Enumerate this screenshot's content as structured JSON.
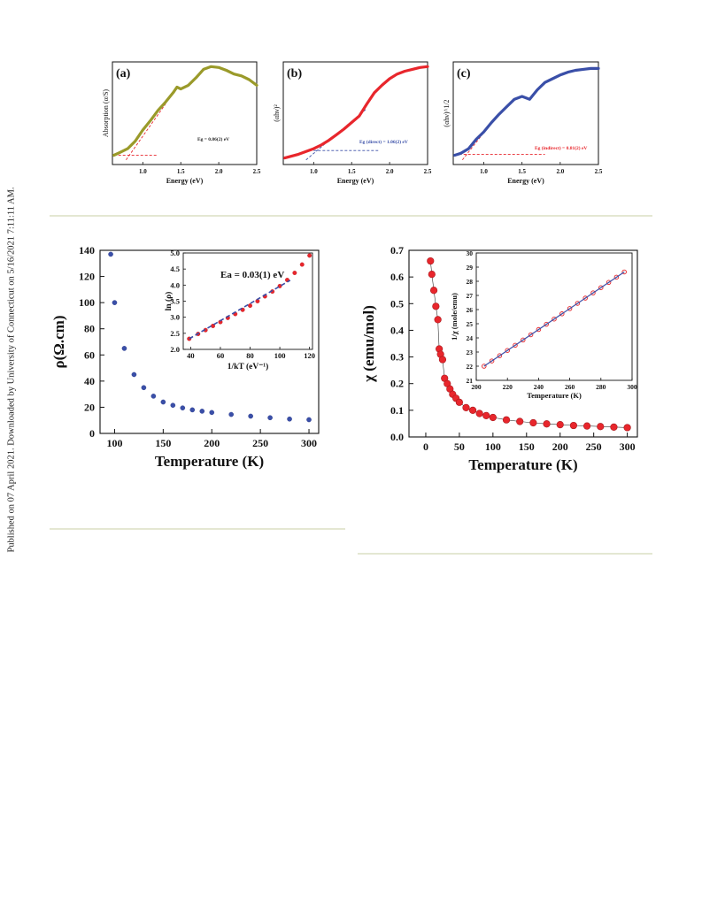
{
  "watermark": "Published on 07 April 2021. Downloaded by University of Connecticut on 5/16/2021 7:11:11 AM.",
  "colors": {
    "olive": "#9a9a2a",
    "red": "#e8262c",
    "blue": "#3a4fa8",
    "divider": "#c8cfa6",
    "dashed_red": "#e8262c",
    "dashed_blue": "#3a4fa8"
  },
  "chart_data": [
    {
      "id": "a",
      "type": "line",
      "panel_label": "(a)",
      "xlabel": "Energy (eV)",
      "ylabel": "Absorption (α/S)",
      "xlim": [
        0.6,
        2.5
      ],
      "xticks": [
        "1.0",
        "1.5",
        "2.0",
        "2.5"
      ],
      "annotation": "Eg = 0.86(2) eV",
      "series": [
        {
          "x": [
            0.62,
            0.7,
            0.8,
            0.9,
            1.0,
            1.1,
            1.2,
            1.3,
            1.4,
            1.45,
            1.5,
            1.6,
            1.7,
            1.8,
            1.9,
            2.0,
            2.1,
            2.2,
            2.3,
            2.4,
            2.5
          ],
          "y": [
            0.05,
            0.08,
            0.12,
            0.2,
            0.32,
            0.42,
            0.53,
            0.62,
            0.72,
            0.78,
            0.76,
            0.8,
            0.88,
            0.97,
            1.0,
            0.99,
            0.96,
            0.92,
            0.9,
            0.86,
            0.8
          ]
        }
      ],
      "tangent": [
        [
          0.78,
          0.0
        ],
        [
          1.3,
          0.6
        ]
      ],
      "baseline": [
        [
          0.62,
          0.05
        ],
        [
          1.2,
          0.05
        ]
      ]
    },
    {
      "id": "b",
      "type": "line",
      "panel_label": "(b)",
      "xlabel": "Energy (eV)",
      "ylabel": "(αhν)²",
      "xlim": [
        0.6,
        2.5
      ],
      "xticks": [
        "1.0",
        "1.5",
        "2.0",
        "2.5"
      ],
      "annotation": "Eg (direct) = 1.06(2) eV",
      "series": [
        {
          "x": [
            0.62,
            0.8,
            1.0,
            1.1,
            1.2,
            1.3,
            1.4,
            1.5,
            1.6,
            1.7,
            1.8,
            1.9,
            2.0,
            2.1,
            2.2,
            2.3,
            2.4,
            2.5
          ],
          "y": [
            0.02,
            0.06,
            0.12,
            0.16,
            0.21,
            0.27,
            0.33,
            0.4,
            0.47,
            0.6,
            0.72,
            0.8,
            0.87,
            0.92,
            0.95,
            0.97,
            0.99,
            1.0
          ]
        }
      ],
      "tangent": [
        [
          0.9,
          0.0
        ],
        [
          1.7,
          0.55
        ]
      ],
      "baseline": [
        [
          1.0,
          0.1
        ],
        [
          1.85,
          0.1
        ]
      ]
    },
    {
      "id": "c",
      "type": "line",
      "panel_label": "(c)",
      "xlabel": "Energy (eV)",
      "ylabel": "(αhν)^1/2",
      "xlim": [
        0.6,
        2.5
      ],
      "xticks": [
        "1.0",
        "1.5",
        "2.0",
        "2.5"
      ],
      "annotation": "Eg (indirect) = 0.81(2) eV",
      "series": [
        {
          "x": [
            0.62,
            0.7,
            0.8,
            0.9,
            1.0,
            1.1,
            1.2,
            1.3,
            1.4,
            1.5,
            1.6,
            1.7,
            1.8,
            1.9,
            2.0,
            2.1,
            2.2,
            2.3,
            2.4,
            2.5
          ],
          "y": [
            0.05,
            0.07,
            0.12,
            0.22,
            0.3,
            0.4,
            0.49,
            0.57,
            0.65,
            0.68,
            0.65,
            0.75,
            0.83,
            0.87,
            0.91,
            0.94,
            0.96,
            0.97,
            0.98,
            0.98
          ]
        }
      ],
      "tangent": [
        [
          0.72,
          0.0
        ],
        [
          1.2,
          0.5
        ]
      ],
      "baseline": [
        [
          0.62,
          0.06
        ],
        [
          1.8,
          0.06
        ]
      ]
    },
    {
      "id": "resistivity",
      "type": "scatter",
      "xlabel": "Temperature (K)",
      "ylabel": "ρ(Ω.cm)",
      "xlim": [
        85,
        310
      ],
      "ylim": [
        0,
        140
      ],
      "xticks": [
        100,
        150,
        200,
        250,
        300
      ],
      "yticks": [
        0,
        20,
        40,
        60,
        80,
        100,
        120,
        140
      ],
      "series": [
        {
          "x": [
            96,
            100,
            110,
            120,
            130,
            140,
            150,
            160,
            170,
            180,
            190,
            200,
            220,
            240,
            260,
            280,
            300
          ],
          "y": [
            137,
            100,
            65,
            45,
            35,
            28.5,
            24,
            21.5,
            19.5,
            18,
            17,
            16,
            14.5,
            13.2,
            12,
            11,
            10.5
          ]
        }
      ],
      "inset": {
        "type": "scatter",
        "xlabel": "1/kT (eV⁻¹)",
        "ylabel": "ln (ρ)",
        "xlim": [
          35,
          122
        ],
        "ylim": [
          2.0,
          5.0
        ],
        "xticks": [
          40,
          60,
          80,
          100,
          120
        ],
        "yticks": [
          "2.0",
          "2.5",
          "3.0",
          "3.5",
          "4.0",
          "4.5",
          "5.0"
        ],
        "annotation": "Ea = 0.03(1) eV",
        "series": [
          {
            "x": [
              39,
              45,
              50,
              55,
              60,
              65,
              70,
              75,
              80,
              85,
              90,
              95,
              100,
              105,
              110,
              115,
              120
            ],
            "y": [
              2.33,
              2.48,
              2.6,
              2.73,
              2.85,
              2.98,
              3.1,
              3.23,
              3.36,
              3.5,
              3.65,
              3.8,
              3.97,
              4.16,
              4.38,
              4.64,
              4.92
            ]
          }
        ],
        "fit": [
          [
            39,
            2.33
          ],
          [
            107,
            4.15
          ]
        ]
      }
    },
    {
      "id": "susceptibility",
      "type": "scatter",
      "xlabel": "Temperature (K)",
      "ylabel": "χ (emu/mol)",
      "xlim": [
        -25,
        315
      ],
      "ylim": [
        0.0,
        0.7
      ],
      "xticks": [
        0,
        50,
        100,
        150,
        200,
        250,
        300
      ],
      "yticks": [
        "0.0",
        "0.1",
        "0.2",
        "0.3",
        "0.4",
        "0.5",
        "0.6",
        "0.7"
      ],
      "series": [
        {
          "x": [
            7,
            9,
            12,
            15,
            18,
            20,
            22,
            25,
            28,
            32,
            36,
            40,
            45,
            50,
            60,
            70,
            80,
            90,
            100,
            120,
            140,
            160,
            180,
            200,
            220,
            240,
            260,
            280,
            300
          ],
          "y": [
            0.66,
            0.61,
            0.55,
            0.49,
            0.44,
            0.33,
            0.31,
            0.29,
            0.22,
            0.2,
            0.18,
            0.16,
            0.145,
            0.13,
            0.11,
            0.1,
            0.088,
            0.08,
            0.073,
            0.064,
            0.058,
            0.053,
            0.049,
            0.046,
            0.043,
            0.041,
            0.039,
            0.037,
            0.035
          ]
        }
      ],
      "inset": {
        "type": "scatter",
        "xlabel": "Temperature (K)",
        "ylabel": "1/χ (mole/emu)",
        "xlim": [
          200,
          300
        ],
        "ylim": [
          21,
          30
        ],
        "xticks": [
          200,
          220,
          240,
          260,
          280,
          300
        ],
        "yticks": [
          21,
          22,
          23,
          24,
          25,
          26,
          27,
          28,
          29,
          30
        ],
        "series": [
          {
            "x": [
              205,
              210,
              215,
              220,
              225,
              230,
              235,
              240,
              245,
              250,
              255,
              260,
              265,
              270,
              275,
              280,
              285,
              290,
              295
            ],
            "y": [
              22.0,
              22.37,
              22.74,
              23.11,
              23.48,
              23.85,
              24.22,
              24.59,
              24.96,
              25.33,
              25.7,
              26.07,
              26.44,
              26.81,
              27.18,
              27.55,
              27.92,
              28.29,
              28.66
            ]
          }
        ],
        "fit": [
          [
            205,
            22.0
          ],
          [
            295,
            28.66
          ]
        ]
      }
    }
  ]
}
